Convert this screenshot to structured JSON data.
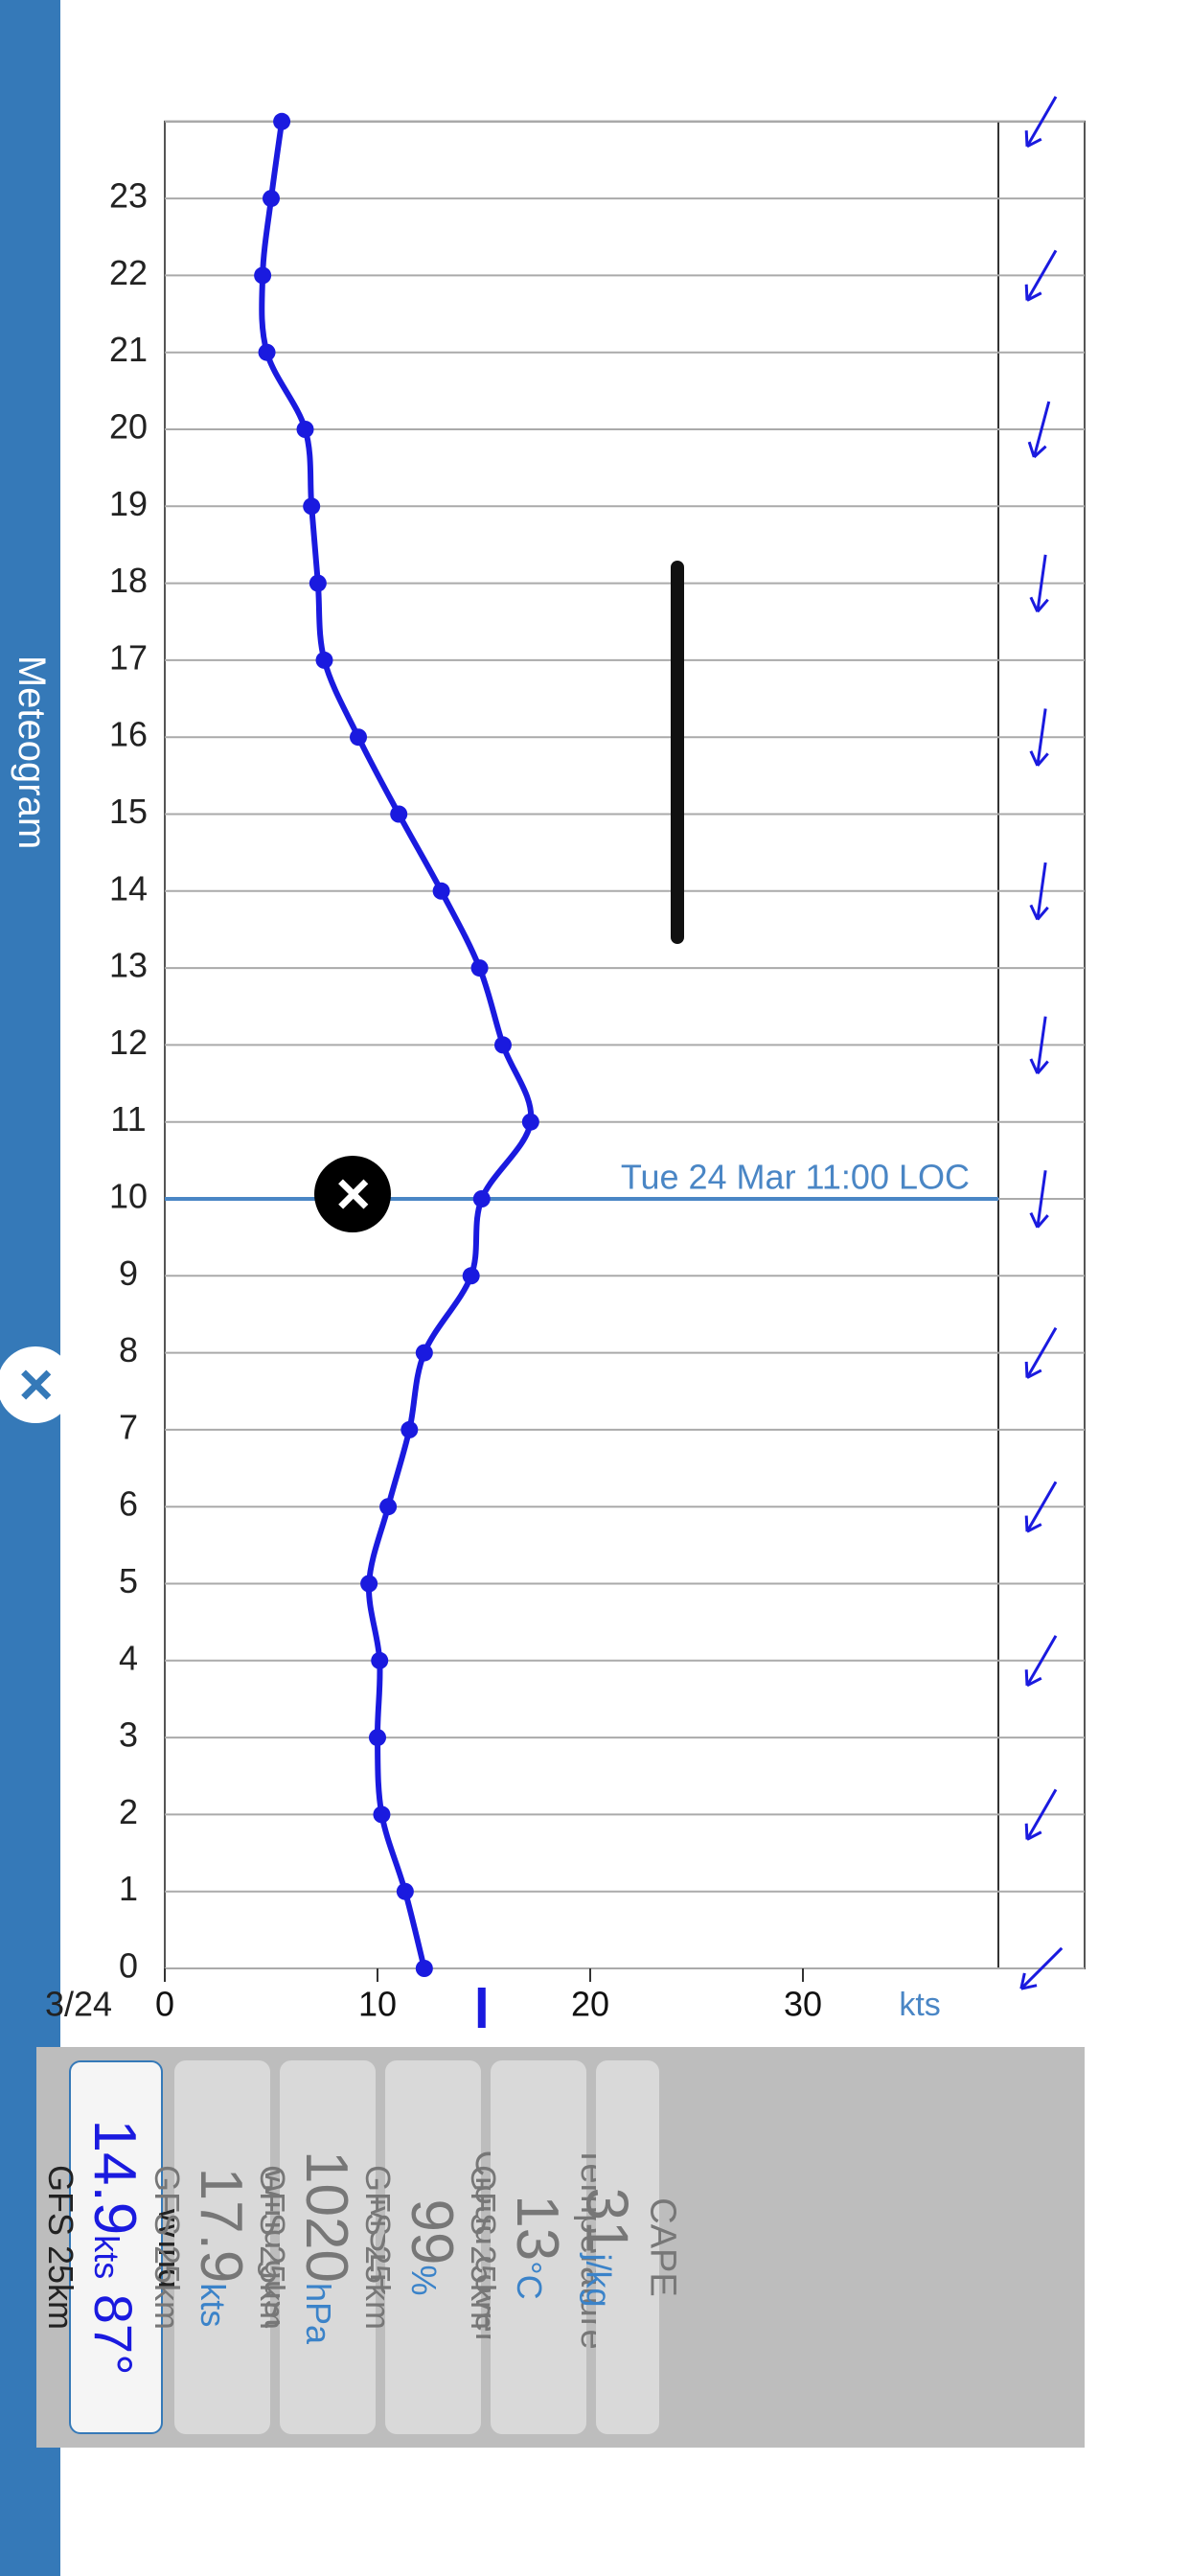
{
  "header": {
    "title": "Meteogram"
  },
  "chart_data": {
    "type": "line",
    "ylabel": "kts",
    "ylim": [
      0,
      38
    ],
    "yticks": [
      0,
      10,
      20,
      30
    ],
    "date_label": "3/24",
    "x": [
      0,
      1,
      2,
      3,
      4,
      5,
      6,
      7,
      8,
      9,
      10,
      11,
      12,
      13,
      14,
      15,
      16,
      17,
      18,
      19,
      20,
      21,
      22,
      23,
      24
    ],
    "values": [
      12.2,
      11.3,
      10.2,
      10.0,
      10.1,
      9.6,
      10.5,
      11.5,
      12.2,
      14.4,
      14.9,
      17.2,
      15.9,
      14.8,
      13.0,
      11.0,
      9.1,
      7.5,
      7.2,
      6.9,
      6.6,
      4.8,
      4.6,
      5.0,
      5.5
    ],
    "wind_dir_arrows": [
      45,
      30,
      30,
      30,
      30,
      30,
      30,
      30,
      30,
      8,
      8,
      8,
      8,
      8,
      8,
      8,
      8,
      8,
      8,
      8,
      15,
      30,
      30,
      30,
      30
    ],
    "cursor_hour": 10,
    "cursor_label": "Tue 24 Mar 11:00 LOC",
    "current_marker_value": 14.9
  },
  "cards": [
    {
      "name": "Wind",
      "value": "14.9",
      "unit": "kts",
      "extra": "87°",
      "source": "GFS 25km",
      "active": true
    },
    {
      "name": "Wind gust",
      "value": "17.9",
      "unit": "kts",
      "source": "GFS 25km"
    },
    {
      "name": "MSLP",
      "value": "1020",
      "unit": "hPa",
      "source": "GFS 25km"
    },
    {
      "name": "Cloud cover",
      "value": "99",
      "unit": "%",
      "source": "GFS 25km"
    },
    {
      "name": "Temperature",
      "value": "13",
      "unit": "°C",
      "source": "GFS 25km"
    },
    {
      "name": "CAPE",
      "value": "31",
      "unit": "j/kg",
      "source": ""
    }
  ],
  "icons": {
    "close": "×"
  }
}
